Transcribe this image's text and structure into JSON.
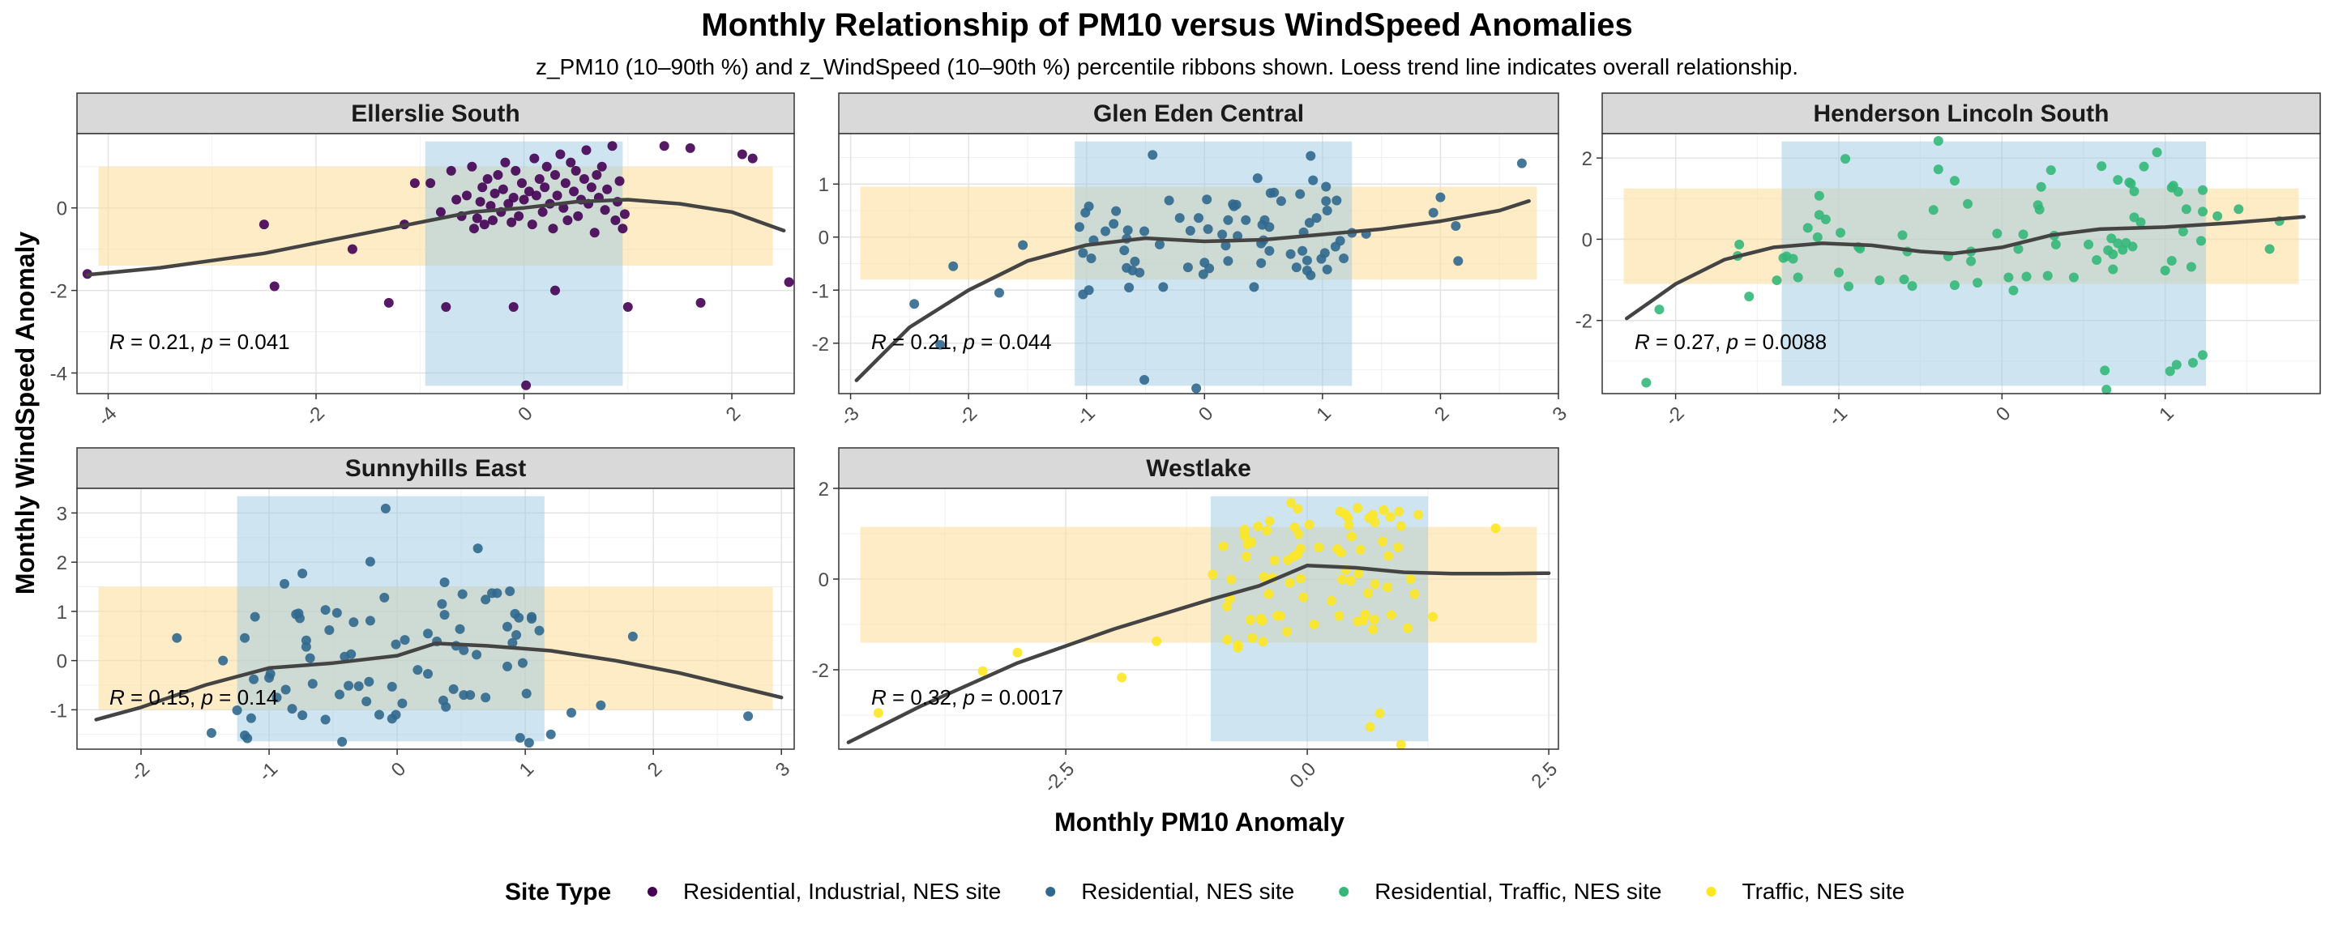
{
  "title": "Monthly Relationship of PM10 versus WindSpeed Anomalies",
  "subtitle": "z_PM10 (10–90th %) and z_WindSpeed (10–90th %) percentile ribbons shown. Loess trend line indicates overall relationship.",
  "xlabel": "Monthly PM10 Anomaly",
  "ylabel": "Monthly WindSpeed Anomaly",
  "legend": {
    "title": "Site Type",
    "position": "bottom",
    "items": [
      {
        "label": "Residential, Industrial, NES site",
        "color": "#440154"
      },
      {
        "label": "Residential, NES site",
        "color": "#31688e"
      },
      {
        "label": "Residential, Traffic, NES site",
        "color": "#35b779"
      },
      {
        "label": "Traffic, NES site",
        "color": "#fde725"
      }
    ]
  },
  "colors": {
    "x_ribbon": "#9ecae1",
    "y_ribbon": "#fde0a0",
    "trend_line": "#444444",
    "strip_bg": "#d9d9d9"
  },
  "chart_data": [
    {
      "type": "scatter",
      "panel": "Ellerslie South",
      "site_type": "Residential, Industrial, NES site",
      "color": "#440154",
      "xlim": [
        -4.3,
        2.6
      ],
      "ylim": [
        -4.5,
        1.8
      ],
      "xticks": [
        -4,
        -2,
        0,
        2
      ],
      "yticks": [
        -4,
        -2,
        0
      ],
      "xribbon": [
        -0.95,
        0.95
      ],
      "yribbon": [
        -1.4,
        1.0
      ],
      "stat": {
        "R": "0.21",
        "p": "0.041"
      },
      "trend": [
        [
          -4.2,
          -1.62
        ],
        [
          -3.5,
          -1.45
        ],
        [
          -2.5,
          -1.1
        ],
        [
          -1.5,
          -0.6
        ],
        [
          -0.5,
          -0.1
        ],
        [
          0.0,
          0.0
        ],
        [
          0.5,
          0.15
        ],
        [
          1.0,
          0.2
        ],
        [
          1.5,
          0.1
        ],
        [
          2.0,
          -0.1
        ],
        [
          2.5,
          -0.55
        ]
      ],
      "points": [
        [
          -4.2,
          -1.6
        ],
        [
          -2.5,
          -0.4
        ],
        [
          -2.4,
          -1.9
        ],
        [
          -1.65,
          -1.0
        ],
        [
          -1.3,
          -2.3
        ],
        [
          -1.15,
          -0.4
        ],
        [
          -1.05,
          0.6
        ],
        [
          -0.9,
          0.6
        ],
        [
          -0.8,
          -0.1
        ],
        [
          -0.75,
          -2.4
        ],
        [
          -0.7,
          0.9
        ],
        [
          -0.65,
          0.2
        ],
        [
          -0.6,
          -0.2
        ],
        [
          -0.55,
          0.3
        ],
        [
          -0.5,
          1.0
        ],
        [
          -0.48,
          -0.5
        ],
        [
          -0.45,
          -0.25
        ],
        [
          -0.42,
          0.15
        ],
        [
          -0.4,
          0.5
        ],
        [
          -0.38,
          -0.4
        ],
        [
          -0.35,
          0.7
        ],
        [
          -0.32,
          0.05
        ],
        [
          -0.3,
          -0.3
        ],
        [
          -0.28,
          0.35
        ],
        [
          -0.25,
          0.8
        ],
        [
          -0.22,
          -0.1
        ],
        [
          -0.2,
          0.45
        ],
        [
          -0.18,
          1.1
        ],
        [
          -0.15,
          0.1
        ],
        [
          -0.12,
          -0.35
        ],
        [
          -0.1,
          0.25
        ],
        [
          -0.08,
          0.9
        ],
        [
          -0.05,
          -0.2
        ],
        [
          -0.02,
          0.6
        ],
        [
          0.0,
          0.2
        ],
        [
          0.02,
          -4.3
        ],
        [
          0.05,
          0.4
        ],
        [
          0.08,
          -0.4
        ],
        [
          0.1,
          1.2
        ],
        [
          0.12,
          0.3
        ],
        [
          0.15,
          0.7
        ],
        [
          0.18,
          -0.1
        ],
        [
          0.2,
          0.5
        ],
        [
          0.22,
          1.0
        ],
        [
          0.25,
          0.1
        ],
        [
          0.28,
          -0.5
        ],
        [
          0.3,
          0.8
        ],
        [
          0.32,
          0.3
        ],
        [
          0.35,
          1.3
        ],
        [
          0.38,
          0.0
        ],
        [
          0.4,
          0.6
        ],
        [
          0.42,
          -0.3
        ],
        [
          0.45,
          1.1
        ],
        [
          0.48,
          0.4
        ],
        [
          0.5,
          0.9
        ],
        [
          0.52,
          -0.2
        ],
        [
          0.55,
          0.2
        ],
        [
          0.58,
          0.7
        ],
        [
          0.6,
          1.4
        ],
        [
          0.62,
          0.1
        ],
        [
          0.65,
          0.5
        ],
        [
          0.68,
          -0.6
        ],
        [
          0.7,
          0.8
        ],
        [
          0.72,
          0.25
        ],
        [
          0.75,
          1.0
        ],
        [
          0.78,
          -0.05
        ],
        [
          0.8,
          0.45
        ],
        [
          0.85,
          1.5
        ],
        [
          0.88,
          -0.3
        ],
        [
          0.9,
          0.15
        ],
        [
          0.92,
          0.65
        ],
        [
          0.95,
          -0.5
        ],
        [
          0.97,
          -0.15
        ],
        [
          1.0,
          -2.4
        ],
        [
          0.3,
          -2.0
        ],
        [
          -0.1,
          -2.4
        ],
        [
          1.35,
          1.5
        ],
        [
          1.6,
          1.45
        ],
        [
          1.7,
          -2.3
        ],
        [
          2.1,
          1.3
        ],
        [
          2.2,
          1.2
        ],
        [
          2.55,
          -1.8
        ]
      ]
    },
    {
      "type": "scatter",
      "panel": "Glen Eden Central",
      "site_type": "Residential, NES site",
      "color": "#31688e",
      "xlim": [
        -3.1,
        3.0
      ],
      "ylim": [
        -2.95,
        1.95
      ],
      "xticks": [
        -3,
        -2,
        -1,
        0,
        1,
        2,
        3
      ],
      "yticks": [
        -2,
        -1,
        0,
        1
      ],
      "xribbon": [
        -1.1,
        1.25
      ],
      "yribbon": [
        -0.8,
        0.95
      ],
      "stat": {
        "R": "0.21",
        "p": "0.044"
      },
      "trend": [
        [
          -2.95,
          -2.7
        ],
        [
          -2.5,
          -1.7
        ],
        [
          -2.0,
          -1.0
        ],
        [
          -1.5,
          -0.45
        ],
        [
          -1.0,
          -0.15
        ],
        [
          -0.5,
          -0.02
        ],
        [
          0.0,
          -0.08
        ],
        [
          0.5,
          -0.05
        ],
        [
          1.0,
          0.05
        ],
        [
          1.5,
          0.15
        ],
        [
          2.0,
          0.3
        ],
        [
          2.5,
          0.5
        ],
        [
          2.75,
          0.68
        ]
      ]
    },
    {
      "type": "scatter",
      "panel": "Henderson Lincoln South",
      "site_type": "Residential, Traffic, NES site",
      "color": "#35b779",
      "xlim": [
        -2.45,
        1.95
      ],
      "ylim": [
        -3.8,
        2.6
      ],
      "xticks": [
        -2,
        -1,
        0,
        1
      ],
      "yticks": [
        -2,
        0,
        2
      ],
      "xribbon": [
        -1.35,
        1.25
      ],
      "yribbon": [
        -1.1,
        1.25
      ],
      "stat": {
        "R": "0.27",
        "p": "0.0088"
      },
      "trend": [
        [
          -2.3,
          -1.95
        ],
        [
          -2.0,
          -1.1
        ],
        [
          -1.7,
          -0.5
        ],
        [
          -1.4,
          -0.2
        ],
        [
          -1.1,
          -0.1
        ],
        [
          -0.8,
          -0.15
        ],
        [
          -0.5,
          -0.3
        ],
        [
          -0.3,
          -0.35
        ],
        [
          0.0,
          -0.2
        ],
        [
          0.3,
          0.1
        ],
        [
          0.6,
          0.25
        ],
        [
          1.0,
          0.3
        ],
        [
          1.4,
          0.4
        ],
        [
          1.85,
          0.55
        ]
      ]
    },
    {
      "type": "scatter",
      "panel": "Sunnyhills East",
      "site_type": "Residential, NES site",
      "color": "#31688e",
      "xlim": [
        -2.5,
        3.1
      ],
      "ylim": [
        -1.8,
        3.5
      ],
      "xticks": [
        -2,
        -1,
        0,
        1,
        2,
        3
      ],
      "yticks": [
        -1,
        0,
        1,
        2,
        3
      ],
      "xribbon": [
        -1.25,
        1.15
      ],
      "yribbon": [
        -1.0,
        1.5
      ],
      "stat": {
        "R": "0.15",
        "p": "0.14"
      },
      "trend": [
        [
          -2.35,
          -1.2
        ],
        [
          -2.0,
          -0.95
        ],
        [
          -1.5,
          -0.5
        ],
        [
          -1.0,
          -0.15
        ],
        [
          -0.5,
          -0.05
        ],
        [
          0.0,
          0.1
        ],
        [
          0.3,
          0.35
        ],
        [
          0.7,
          0.3
        ],
        [
          1.2,
          0.2
        ],
        [
          1.7,
          0.0
        ],
        [
          2.2,
          -0.25
        ],
        [
          2.6,
          -0.5
        ],
        [
          3.0,
          -0.75
        ]
      ]
    },
    {
      "type": "scatter",
      "panel": "Westlake",
      "site_type": "Traffic, NES site",
      "color": "#fde725",
      "xlim": [
        -4.85,
        2.6
      ],
      "ylim": [
        -3.75,
        2.0
      ],
      "xticks": [
        -2.5,
        0.0,
        2.5
      ],
      "tick_labels_x": [
        "-2.5",
        "0.0",
        "2.5"
      ],
      "yticks": [
        -2,
        0,
        2
      ],
      "xribbon": [
        -1.0,
        1.25
      ],
      "yribbon": [
        -1.4,
        1.15
      ],
      "stat": {
        "R": "0.32",
        "p": "0.0017"
      },
      "trend": [
        [
          -4.75,
          -3.6
        ],
        [
          -4.0,
          -2.8
        ],
        [
          -3.0,
          -1.85
        ],
        [
          -2.0,
          -1.1
        ],
        [
          -1.0,
          -0.45
        ],
        [
          -0.5,
          -0.15
        ],
        [
          0.0,
          0.3
        ],
        [
          0.5,
          0.25
        ],
        [
          1.0,
          0.15
        ],
        [
          1.5,
          0.12
        ],
        [
          2.0,
          0.12
        ],
        [
          2.5,
          0.13
        ]
      ]
    }
  ]
}
